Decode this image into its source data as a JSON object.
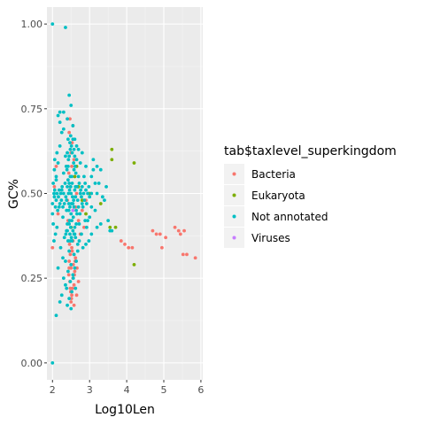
{
  "chart_data": {
    "type": "scatter",
    "title": "",
    "xlabel": "Log10Len",
    "ylabel": "GC%",
    "xlim": [
      1.85,
      6.05
    ],
    "ylim": [
      -0.05,
      1.05
    ],
    "x_ticks": [
      2,
      3,
      4,
      5,
      6
    ],
    "x_tick_labels": [
      "2",
      "3",
      "4",
      "5",
      "6"
    ],
    "y_ticks": [
      0,
      0.25,
      0.5,
      0.75,
      1.0
    ],
    "y_tick_labels": [
      "0.00",
      "0.25",
      "0.50",
      "0.75",
      "1.00"
    ],
    "grid": true,
    "legend_placement": "right",
    "legend_title": "tab$taxlevel_superkingdom",
    "series": [
      {
        "name": "Bacteria",
        "color": "#F8766D",
        "points": [
          [
            2.45,
            0.3
          ],
          [
            2.5,
            0.28
          ],
          [
            2.55,
            0.25
          ],
          [
            2.48,
            0.22
          ],
          [
            2.52,
            0.2
          ],
          [
            2.58,
            0.32
          ],
          [
            2.46,
            0.35
          ],
          [
            2.6,
            0.27
          ],
          [
            2.62,
            0.31
          ],
          [
            2.44,
            0.26
          ],
          [
            2.5,
            0.18
          ],
          [
            2.56,
            0.29
          ],
          [
            2.53,
            0.33
          ],
          [
            2.47,
            0.24
          ],
          [
            2.55,
            0.36
          ],
          [
            2.49,
            0.21
          ],
          [
            2.58,
            0.23
          ],
          [
            2.51,
            0.19
          ],
          [
            2.61,
            0.3
          ],
          [
            2.45,
            0.28
          ],
          [
            2.52,
            0.34
          ],
          [
            2.59,
            0.26
          ],
          [
            2.48,
            0.32
          ],
          [
            2.54,
            0.22
          ],
          [
            2.5,
            0.4
          ],
          [
            2.55,
            0.45
          ],
          [
            2.48,
            0.52
          ],
          [
            2.52,
            0.58
          ],
          [
            2.5,
            0.62
          ],
          [
            2.45,
            0.68
          ],
          [
            2.55,
            0.7
          ],
          [
            2.6,
            0.55
          ],
          [
            2.4,
            0.48
          ],
          [
            2.65,
            0.5
          ],
          [
            2.42,
            0.42
          ],
          [
            2.58,
            0.6
          ],
          [
            2.53,
            0.65
          ],
          [
            2.47,
            0.72
          ],
          [
            2.62,
            0.46
          ],
          [
            2.44,
            0.56
          ],
          [
            2.7,
            0.42
          ],
          [
            2.75,
            0.38
          ],
          [
            2.8,
            0.45
          ],
          [
            2.68,
            0.52
          ],
          [
            2.85,
            0.4
          ],
          [
            2.9,
            0.48
          ],
          [
            2.1,
            0.58
          ],
          [
            2.05,
            0.52
          ],
          [
            2.0,
            0.34
          ],
          [
            2.15,
            0.44
          ],
          [
            3.85,
            0.36
          ],
          [
            3.95,
            0.35
          ],
          [
            4.05,
            0.34
          ],
          [
            4.15,
            0.34
          ],
          [
            4.7,
            0.39
          ],
          [
            4.8,
            0.38
          ],
          [
            4.9,
            0.38
          ],
          [
            4.95,
            0.34
          ],
          [
            5.05,
            0.37
          ],
          [
            5.3,
            0.4
          ],
          [
            5.4,
            0.39
          ],
          [
            5.45,
            0.38
          ],
          [
            5.55,
            0.39
          ],
          [
            5.52,
            0.32
          ],
          [
            5.62,
            0.32
          ],
          [
            5.85,
            0.31
          ],
          [
            2.65,
            0.2
          ],
          [
            2.58,
            0.17
          ],
          [
            2.7,
            0.24
          ],
          [
            2.66,
            0.28
          ]
        ]
      },
      {
        "name": "Eukaryota",
        "color": "#7CAE00",
        "points": [
          [
            3.6,
            0.63
          ],
          [
            4.2,
            0.59
          ],
          [
            3.6,
            0.6
          ],
          [
            4.2,
            0.29
          ],
          [
            3.55,
            0.4
          ],
          [
            3.7,
            0.4
          ],
          [
            3.3,
            0.47
          ],
          [
            2.6,
            0.55
          ],
          [
            2.8,
            0.48
          ],
          [
            2.7,
            0.52
          ],
          [
            2.5,
            0.4
          ],
          [
            3.0,
            0.5
          ],
          [
            2.9,
            0.44
          ],
          [
            2.65,
            0.58
          ]
        ]
      },
      {
        "name": "Not annotated",
        "color": "#00BFC4",
        "points": [
          [
            2.0,
            1.0
          ],
          [
            2.35,
            0.99
          ],
          [
            2.0,
            0.0
          ],
          [
            2.1,
            0.14
          ],
          [
            2.45,
            0.79
          ],
          [
            2.5,
            0.76
          ],
          [
            2.2,
            0.74
          ],
          [
            2.4,
            0.72
          ],
          [
            2.55,
            0.7
          ],
          [
            2.3,
            0.69
          ],
          [
            2.6,
            0.66
          ],
          [
            2.2,
            0.64
          ],
          [
            2.48,
            0.63
          ],
          [
            2.35,
            0.61
          ],
          [
            2.65,
            0.6
          ],
          [
            2.15,
            0.59
          ],
          [
            2.42,
            0.58
          ],
          [
            2.58,
            0.57
          ],
          [
            2.3,
            0.56
          ],
          [
            2.52,
            0.55
          ],
          [
            2.7,
            0.55
          ],
          [
            2.1,
            0.54
          ],
          [
            2.45,
            0.53
          ],
          [
            2.62,
            0.52
          ],
          [
            2.25,
            0.51
          ],
          [
            2.5,
            0.5
          ],
          [
            2.75,
            0.5
          ],
          [
            2.05,
            0.49
          ],
          [
            2.38,
            0.48
          ],
          [
            2.55,
            0.47
          ],
          [
            2.8,
            0.47
          ],
          [
            2.18,
            0.46
          ],
          [
            2.44,
            0.45
          ],
          [
            2.66,
            0.44
          ],
          [
            2.28,
            0.43
          ],
          [
            2.52,
            0.42
          ],
          [
            2.72,
            0.41
          ],
          [
            2.12,
            0.4
          ],
          [
            2.4,
            0.39
          ],
          [
            2.6,
            0.38
          ],
          [
            2.32,
            0.37
          ],
          [
            2.48,
            0.36
          ],
          [
            2.68,
            0.35
          ],
          [
            2.22,
            0.34
          ],
          [
            2.45,
            0.33
          ],
          [
            2.58,
            0.32
          ],
          [
            2.35,
            0.3
          ],
          [
            2.5,
            0.29
          ],
          [
            2.15,
            0.28
          ],
          [
            2.42,
            0.27
          ],
          [
            2.55,
            0.26
          ],
          [
            2.3,
            0.25
          ],
          [
            2.48,
            0.24
          ],
          [
            2.38,
            0.22
          ],
          [
            2.52,
            0.21
          ],
          [
            2.25,
            0.2
          ],
          [
            2.45,
            0.19
          ],
          [
            2.4,
            0.17
          ],
          [
            2.5,
            0.16
          ],
          [
            2.2,
            0.18
          ],
          [
            2.35,
            0.23
          ],
          [
            2.28,
            0.31
          ],
          [
            2.46,
            0.51
          ],
          [
            2.54,
            0.49
          ],
          [
            2.49,
            0.52
          ],
          [
            2.51,
            0.47
          ],
          [
            2.47,
            0.46
          ],
          [
            2.53,
            0.53
          ],
          [
            2.43,
            0.5
          ],
          [
            2.57,
            0.48
          ],
          [
            2.5,
            0.44
          ],
          [
            2.48,
            0.55
          ],
          [
            2.56,
            0.43
          ],
          [
            2.44,
            0.47
          ],
          [
            2.6,
            0.51
          ],
          [
            2.42,
            0.54
          ],
          [
            2.58,
            0.46
          ],
          [
            2.46,
            0.42
          ],
          [
            2.62,
            0.49
          ],
          [
            2.4,
            0.52
          ],
          [
            2.64,
            0.45
          ],
          [
            2.38,
            0.45
          ],
          [
            2.66,
            0.52
          ],
          [
            2.36,
            0.49
          ],
          [
            2.68,
            0.48
          ],
          [
            2.34,
            0.53
          ],
          [
            2.7,
            0.46
          ],
          [
            2.32,
            0.47
          ],
          [
            2.72,
            0.53
          ],
          [
            2.3,
            0.5
          ],
          [
            2.74,
            0.44
          ],
          [
            2.28,
            0.46
          ],
          [
            2.76,
            0.51
          ],
          [
            2.26,
            0.52
          ],
          [
            2.78,
            0.49
          ],
          [
            2.24,
            0.48
          ],
          [
            2.8,
            0.52
          ],
          [
            2.22,
            0.5
          ],
          [
            2.82,
            0.46
          ],
          [
            2.2,
            0.47
          ],
          [
            2.84,
            0.5
          ],
          [
            2.18,
            0.51
          ],
          [
            2.86,
            0.48
          ],
          [
            2.16,
            0.49
          ],
          [
            2.88,
            0.53
          ],
          [
            2.14,
            0.45
          ],
          [
            2.9,
            0.51
          ],
          [
            2.12,
            0.5
          ],
          [
            2.92,
            0.47
          ],
          [
            2.1,
            0.48
          ],
          [
            2.95,
            0.5
          ],
          [
            2.08,
            0.46
          ],
          [
            2.98,
            0.52
          ],
          [
            2.06,
            0.51
          ],
          [
            3.0,
            0.49
          ],
          [
            2.04,
            0.5
          ],
          [
            2.47,
            0.65
          ],
          [
            2.53,
            0.62
          ],
          [
            2.49,
            0.67
          ],
          [
            2.51,
            0.64
          ],
          [
            2.55,
            0.66
          ],
          [
            2.45,
            0.61
          ],
          [
            2.58,
            0.63
          ],
          [
            2.42,
            0.66
          ],
          [
            2.6,
            0.61
          ],
          [
            2.4,
            0.62
          ],
          [
            2.57,
            0.59
          ],
          [
            2.43,
            0.6
          ],
          [
            2.61,
            0.58
          ],
          [
            2.39,
            0.57
          ],
          [
            2.63,
            0.56
          ],
          [
            2.37,
            0.58
          ],
          [
            2.47,
            0.38
          ],
          [
            2.53,
            0.36
          ],
          [
            2.49,
            0.4
          ],
          [
            2.51,
            0.37
          ],
          [
            2.55,
            0.39
          ],
          [
            2.45,
            0.41
          ],
          [
            2.58,
            0.38
          ],
          [
            2.42,
            0.36
          ],
          [
            2.6,
            0.4
          ],
          [
            2.4,
            0.41
          ],
          [
            2.62,
            0.37
          ],
          [
            2.38,
            0.39
          ],
          [
            2.64,
            0.41
          ],
          [
            2.36,
            0.38
          ],
          [
            3.05,
            0.55
          ],
          [
            3.1,
            0.57
          ],
          [
            3.2,
            0.5
          ],
          [
            3.25,
            0.53
          ],
          [
            3.3,
            0.57
          ],
          [
            3.15,
            0.45
          ],
          [
            3.35,
            0.49
          ],
          [
            3.1,
            0.6
          ],
          [
            3.0,
            0.43
          ],
          [
            3.05,
            0.46
          ],
          [
            3.2,
            0.58
          ],
          [
            2.95,
            0.42
          ],
          [
            3.4,
            0.48
          ],
          [
            3.5,
            0.42
          ],
          [
            3.6,
            0.39
          ],
          [
            3.55,
            0.39
          ],
          [
            3.3,
            0.41
          ],
          [
            3.15,
            0.53
          ],
          [
            3.45,
            0.52
          ],
          [
            3.05,
            0.5
          ],
          [
            2.1,
            0.55
          ],
          [
            2.05,
            0.57
          ],
          [
            2.0,
            0.44
          ],
          [
            2.02,
            0.41
          ],
          [
            2.08,
            0.38
          ],
          [
            2.04,
            0.36
          ],
          [
            2.06,
            0.6
          ],
          [
            2.12,
            0.62
          ],
          [
            2.0,
            0.47
          ],
          [
            2.02,
            0.53
          ],
          [
            2.15,
            0.73
          ],
          [
            2.2,
            0.71
          ],
          [
            2.3,
            0.74
          ],
          [
            2.25,
            0.68
          ],
          [
            2.8,
            0.62
          ],
          [
            2.9,
            0.58
          ],
          [
            2.85,
            0.55
          ],
          [
            2.75,
            0.59
          ],
          [
            2.7,
            0.63
          ],
          [
            2.65,
            0.64
          ],
          [
            2.88,
            0.42
          ],
          [
            2.92,
            0.4
          ],
          [
            2.78,
            0.38
          ],
          [
            2.72,
            0.36
          ],
          [
            2.68,
            0.33
          ],
          [
            2.64,
            0.3
          ],
          [
            2.6,
            0.28
          ],
          [
            2.56,
            0.25
          ],
          [
            2.62,
            0.22
          ],
          [
            3.2,
            0.4
          ],
          [
            3.05,
            0.38
          ],
          [
            2.98,
            0.36
          ],
          [
            2.9,
            0.35
          ],
          [
            2.82,
            0.34
          ]
        ]
      },
      {
        "name": "Viruses",
        "color": "#C77CFF",
        "points": [
          [
            2.55,
            0.45
          ]
        ]
      }
    ]
  }
}
